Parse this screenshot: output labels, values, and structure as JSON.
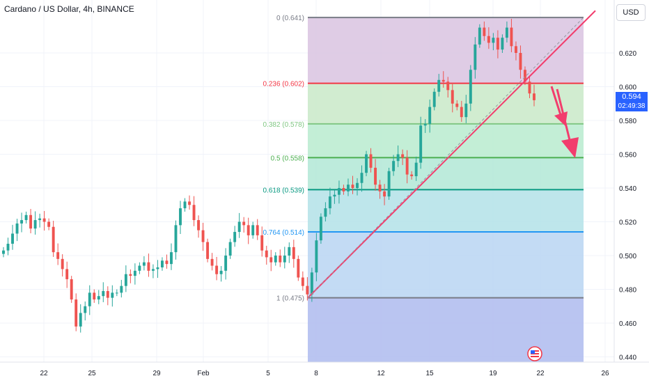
{
  "header": {
    "title": "Cardano / US Dollar, 4h, BINANCE",
    "currency": "USD"
  },
  "last_price": {
    "value": "0.594",
    "countdown": "02:49:38",
    "color": "#2962ff"
  },
  "colors": {
    "up": "#26a69a",
    "down": "#ef5350",
    "trendline": "#f23d6d",
    "arrow": "#f23d6d"
  },
  "chart_data": {
    "type": "candlestick",
    "symbol": "Cardano / US Dollar",
    "interval": "4h",
    "exchange": "BINANCE",
    "ylim": [
      0.437,
      0.647
    ],
    "yticks": [
      "0.620",
      "0.600",
      "0.580",
      "0.560",
      "0.540",
      "0.520",
      "0.500",
      "0.480",
      "0.460",
      "0.440"
    ],
    "xticks": [
      "22",
      "25",
      "29",
      "Feb",
      "5",
      "8",
      "12",
      "15",
      "19",
      "22",
      "26"
    ],
    "fibonacci": [
      {
        "label": "0 (0.641)",
        "value": 0.641,
        "color": "#787b86"
      },
      {
        "label": "0.236 (0.602)",
        "value": 0.602,
        "color": "#f23645"
      },
      {
        "label": "0.382 (0.578)",
        "value": 0.578,
        "color": "#81c784"
      },
      {
        "label": "0.5 (0.558)",
        "value": 0.558,
        "color": "#4caf50"
      },
      {
        "label": "0.618 (0.539)",
        "value": 0.539,
        "color": "#089981"
      },
      {
        "label": "0.764 (0.514)",
        "value": 0.514,
        "color": "#2196f3"
      },
      {
        "label": "1 (0.475)",
        "value": 0.475,
        "color": "#787b86"
      }
    ],
    "fib_zone_colors": [
      "#d9c3e0",
      "#c9e9c8",
      "#b8ebcf",
      "#b2e8d6",
      "#b3e2e7",
      "#b9d5f2",
      "#c9d2e4",
      "#b3bff0"
    ],
    "close_series": [
      0.503,
      0.507,
      0.513,
      0.519,
      0.521,
      0.524,
      0.516,
      0.521,
      0.522,
      0.52,
      0.517,
      0.502,
      0.498,
      0.492,
      0.486,
      0.474,
      0.458,
      0.466,
      0.47,
      0.478,
      0.474,
      0.476,
      0.479,
      0.475,
      0.478,
      0.478,
      0.482,
      0.489,
      0.488,
      0.491,
      0.494,
      0.496,
      0.491,
      0.492,
      0.493,
      0.497,
      0.495,
      0.502,
      0.518,
      0.528,
      0.532,
      0.53,
      0.521,
      0.515,
      0.508,
      0.498,
      0.494,
      0.489,
      0.491,
      0.5,
      0.508,
      0.514,
      0.52,
      0.518,
      0.512,
      0.518,
      0.512,
      0.503,
      0.499,
      0.496,
      0.5,
      0.496,
      0.5,
      0.505,
      0.498,
      0.487,
      0.482,
      0.477,
      0.49,
      0.509,
      0.523,
      0.528,
      0.535,
      0.536,
      0.54,
      0.538,
      0.542,
      0.54,
      0.543,
      0.549,
      0.56,
      0.552,
      0.542,
      0.538,
      0.535,
      0.55,
      0.556,
      0.56,
      0.558,
      0.548,
      0.547,
      0.555,
      0.577,
      0.578,
      0.588,
      0.597,
      0.604,
      0.603,
      0.598,
      0.59,
      0.588,
      0.582,
      0.59,
      0.61,
      0.625,
      0.635,
      0.63,
      0.626,
      0.629,
      0.622,
      0.629,
      0.635,
      0.624,
      0.62,
      0.61,
      0.603,
      0.596,
      0.592
    ],
    "trendline": {
      "from": {
        "x": "7 Feb",
        "y": 0.475
      },
      "to": {
        "x": "25 Feb",
        "y": 0.645
      }
    },
    "projection_arrows": 2
  }
}
